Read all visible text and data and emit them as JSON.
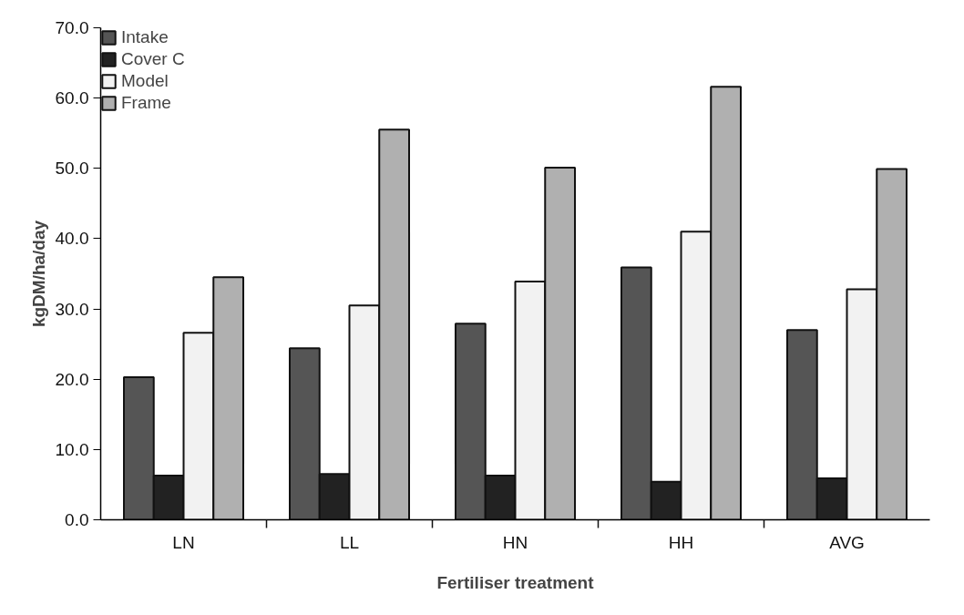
{
  "chart_data": {
    "type": "bar",
    "xlabel": "Fertiliser treatment",
    "ylabel": "kgDM/ha/day",
    "categories": [
      "LN",
      "LL",
      "HN",
      "HH",
      "AVG"
    ],
    "series": [
      {
        "name": "Intake",
        "color": "#555555",
        "values": [
          20.3,
          24.4,
          27.9,
          35.9,
          27.0
        ]
      },
      {
        "name": "Cover C",
        "color": "#222222",
        "values": [
          6.3,
          6.5,
          6.3,
          5.4,
          5.9
        ]
      },
      {
        "name": "Model",
        "color": "#f2f2f2",
        "values": [
          26.6,
          30.5,
          33.9,
          41.0,
          32.8
        ]
      },
      {
        "name": "Frame",
        "color": "#b0b0b0",
        "values": [
          34.5,
          55.5,
          50.1,
          61.6,
          49.9
        ]
      }
    ],
    "ylim": [
      0,
      70
    ],
    "yticks": [
      {
        "value": 0,
        "label": "0.0"
      },
      {
        "value": 10,
        "label": "10.0"
      },
      {
        "value": 20,
        "label": "20.0"
      },
      {
        "value": 30,
        "label": "30.0"
      },
      {
        "value": 40,
        "label": "40.0"
      },
      {
        "value": 50,
        "label": "50.0"
      },
      {
        "value": 60,
        "label": "60.0"
      },
      {
        "value": 70,
        "label": "70.0"
      }
    ],
    "grid": false,
    "legend": "top left"
  }
}
